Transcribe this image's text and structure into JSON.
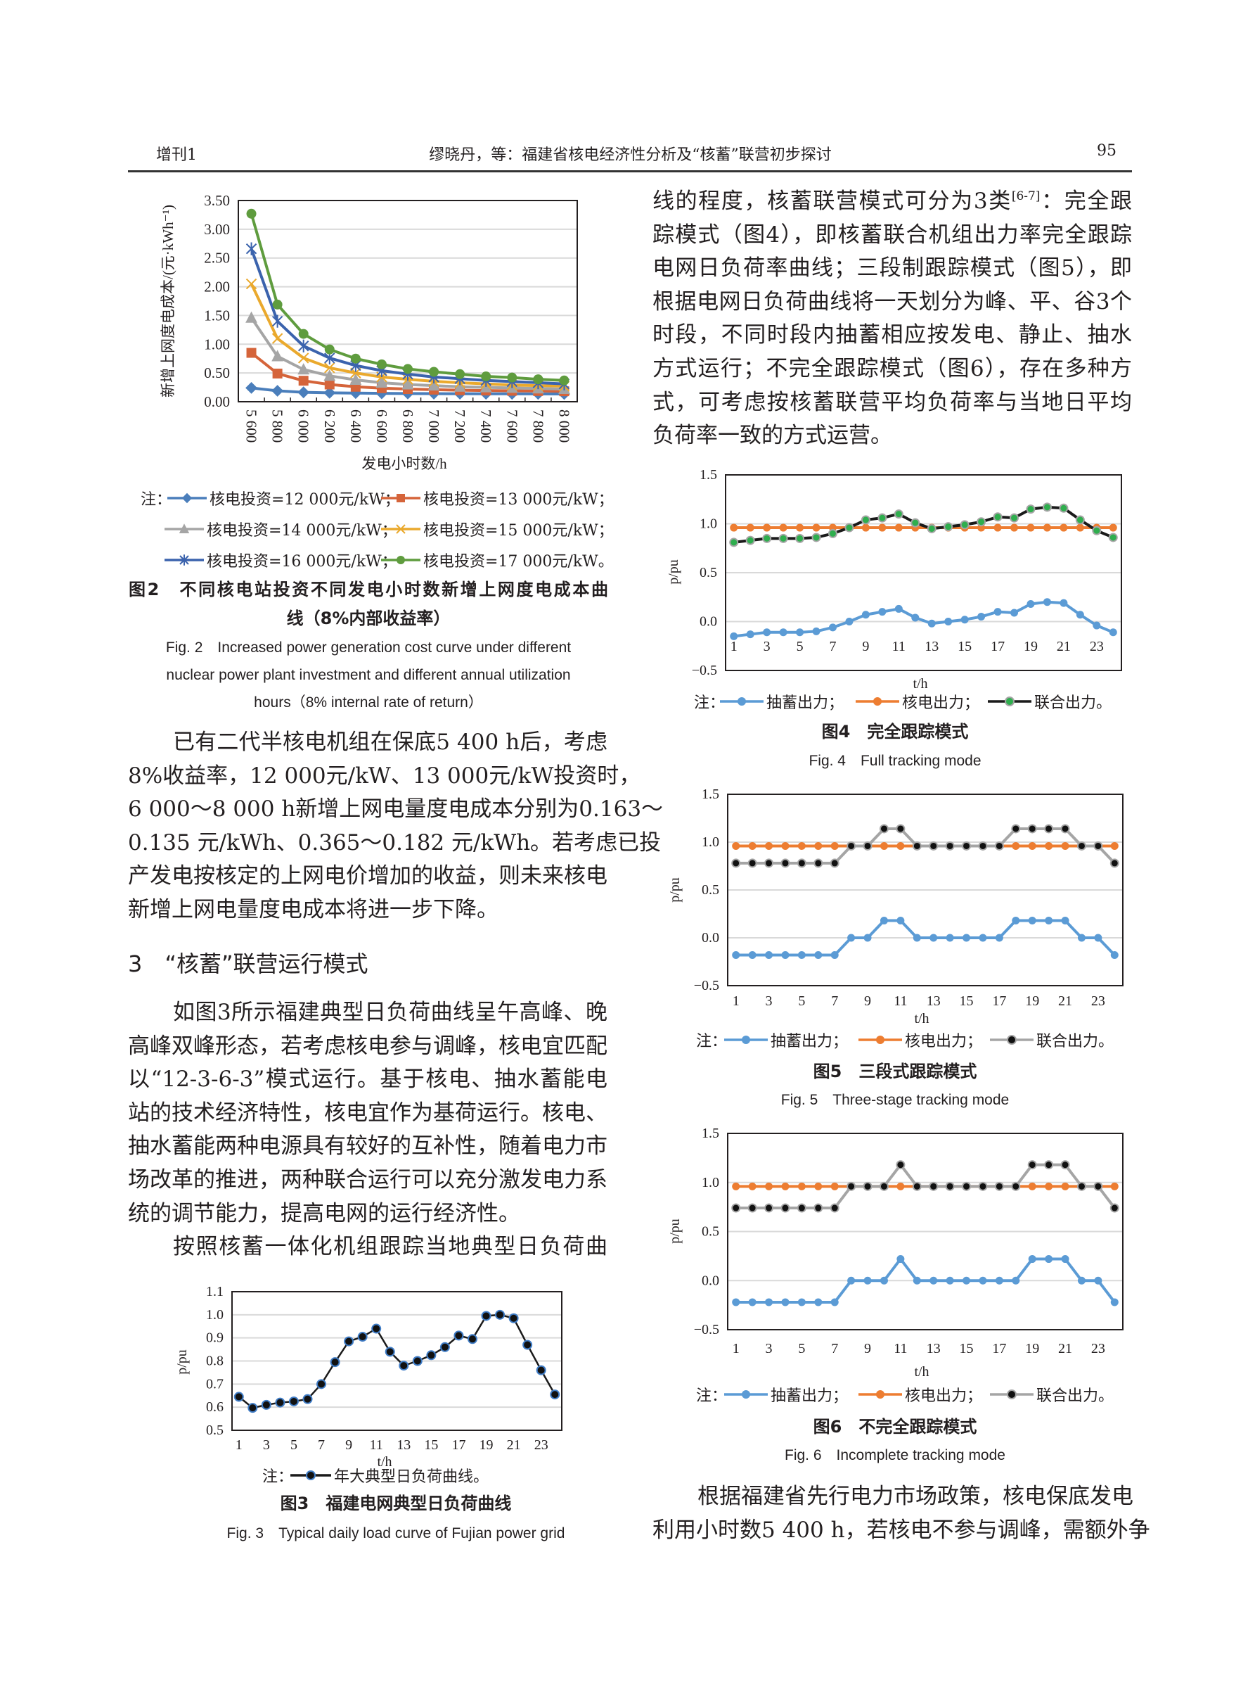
{
  "header": {
    "issue": "增刊1",
    "title": "缪晓丹，等：福建省核电经济性分析及“核蓄”联营初步探讨",
    "page_number": "95"
  },
  "right_top": {
    "line1_a": "线的程度，核蓄联营模式可分为3类",
    "line1_sup": "[6-7]",
    "line1_b": "：完全跟",
    "lines": [
      "踪模式（图4），即核蓄联合机组出力率完全跟踪",
      "电网日负荷率曲线；三段制跟踪模式（图5），即",
      "根据电网日负荷曲线将一天划分为峰、平、谷3个",
      "时段，不同时段内抽蓄相应按发电、静止、抽水",
      "方式运行；不完全跟踪模式（图6），存在多种方",
      "式，可考虑按核蓄联营平均负荷率与当地日平均",
      "负荷率一致的方式运营。"
    ]
  },
  "left_para1": [
    "已有二代半核电机组在保底5 400 h后，考虑",
    "8%收益率，12 000元/kW、13 000元/kW投资时，",
    "6 000～8 000 h新增上网电量度电成本分别为0.163～",
    "0.135 元/kWh、0.365～0.182 元/kWh。若考虑已投",
    "产发电按核定的上网电价增加的收益，则未来核电",
    "新增上网电量度电成本将进一步下降。"
  ],
  "section_heading": "3　“核蓄”联营运行模式",
  "left_para2": [
    "如图3所示福建典型日负荷曲线呈午高峰、晚",
    "高峰双峰形态，若考虑核电参与调峰，核电宜匹配",
    "以“12-3-6-3”模式运行。基于核电、抽水蓄能电",
    "站的技术经济特性，核电宜作为基荷运行。核电、",
    "抽水蓄能两种电源具有较好的互补性，随着电力市",
    "场改革的推进，两种联合运行可以充分激发电力系",
    "统的调节能力，提高电网的运行经济性。"
  ],
  "left_para3": [
    "按照核蓄一体化机组跟踪当地典型日负荷曲"
  ],
  "right_bottom": [
    "根据福建省先行电力市场政策，核电保底发电",
    "利用小时数5 400 h，若核电不参与调峰，需额外争"
  ],
  "captions": {
    "fig2_cn": [
      "图2　不同核电站投资不同发电小时数新增上网度电成本曲",
      "线（8%内部收益率）"
    ],
    "fig2_en": [
      "Fig. 2　Increased power generation cost curve under different",
      "nuclear power plant investment and different annual utilization",
      "hours（8% internal rate of return）"
    ],
    "fig3_cn": "图3　福建电网典型日负荷曲线",
    "fig3_en": "Fig. 3　Typical daily load curve of Fujian power grid",
    "fig4_cn": "图4　完全跟踪模式",
    "fig4_en": "Fig. 4　Full tracking mode",
    "fig5_cn": "图5　三段式跟踪模式",
    "fig5_en": "Fig. 5　Three-stage tracking mode",
    "fig6_cn": "图6　不完全跟踪模式",
    "fig6_en": "Fig. 6　Incomplete tracking mode"
  },
  "legend_note": "注：",
  "chart_data": [
    {
      "type": "line",
      "xlabel": "发电小时数/h",
      "ylabel": "新增上网度电成本/(元·kWh⁻¹)",
      "x": [
        5600,
        5800,
        6000,
        6200,
        6400,
        6600,
        6800,
        7000,
        7200,
        7400,
        7600,
        7800,
        8000
      ],
      "xtick_labels": [
        "5 600",
        "5 800",
        "6 000",
        "6 200",
        "6 400",
        "6 600",
        "6 800",
        "7 000",
        "7 200",
        "7 400",
        "7 600",
        "7 800",
        "8 000"
      ],
      "ylim": [
        0,
        3.5
      ],
      "yticks": [
        0,
        0.5,
        1,
        1.5,
        2,
        2.5,
        3,
        3.5
      ],
      "ytick_labels": [
        "0.00",
        "0.50",
        "1.00",
        "1.50",
        "2.00",
        "2.50",
        "3.00",
        "3.50"
      ],
      "grid": true,
      "legend": "below",
      "series": [
        {
          "name": "核电投资=12 000元/kW；",
          "color": "#4a7ebb",
          "marker": "diamond",
          "values": [
            0.24,
            0.19,
            0.163,
            0.155,
            0.15,
            0.146,
            0.143,
            0.14,
            0.139,
            0.138,
            0.137,
            0.136,
            0.135
          ]
        },
        {
          "name": "核电投资=13 000元/kW；",
          "color": "#d5643a",
          "marker": "square",
          "values": [
            0.85,
            0.49,
            0.365,
            0.3,
            0.26,
            0.235,
            0.22,
            0.21,
            0.2,
            0.195,
            0.19,
            0.186,
            0.182
          ]
        },
        {
          "name": "核电投资=14 000元/kW；",
          "color": "#a5a5a5",
          "marker": "triangle",
          "values": [
            1.46,
            0.79,
            0.56,
            0.45,
            0.38,
            0.33,
            0.3,
            0.28,
            0.26,
            0.25,
            0.24,
            0.23,
            0.22
          ]
        },
        {
          "name": "核电投资=15 000元/kW；",
          "color": "#eaa92d",
          "marker": "x",
          "values": [
            2.05,
            1.1,
            0.76,
            0.59,
            0.5,
            0.43,
            0.39,
            0.355,
            0.33,
            0.31,
            0.29,
            0.28,
            0.27
          ]
        },
        {
          "name": "核电投资=16 000元/kW；",
          "color": "#3b63ad",
          "marker": "asterisk",
          "values": [
            2.66,
            1.4,
            0.97,
            0.76,
            0.63,
            0.54,
            0.48,
            0.43,
            0.4,
            0.37,
            0.35,
            0.33,
            0.31
          ]
        },
        {
          "name": "核电投资=17 000元/kW。",
          "color": "#5f9c3e",
          "marker": "circle",
          "values": [
            3.27,
            1.69,
            1.18,
            0.91,
            0.75,
            0.65,
            0.57,
            0.52,
            0.48,
            0.44,
            0.42,
            0.39,
            0.37
          ]
        }
      ]
    },
    {
      "type": "line",
      "xlabel": "t/h",
      "ylabel": "p/pu",
      "x": [
        1,
        2,
        3,
        4,
        5,
        6,
        7,
        8,
        9,
        10,
        11,
        12,
        13,
        14,
        15,
        16,
        17,
        18,
        19,
        20,
        21,
        22,
        23,
        24
      ],
      "xtick_labels": [
        "1",
        "3",
        "5",
        "7",
        "9",
        "11",
        "13",
        "15",
        "17",
        "19",
        "21",
        "23"
      ],
      "ylim": [
        0.5,
        1.1
      ],
      "yticks": [
        0.5,
        0.6,
        0.7,
        0.8,
        0.9,
        1.0,
        1.1
      ],
      "ytick_labels": [
        "0.5",
        "0.6",
        "0.7",
        "0.8",
        "0.9",
        "1.0",
        "1.1"
      ],
      "grid": true,
      "legend": "below",
      "series": [
        {
          "name": "年大典型日负荷曲线。",
          "color": "#1a1a1a",
          "marker": "circle",
          "marker_fill": "#111111",
          "marker_stroke": "#3f7cc6",
          "values": [
            0.645,
            0.597,
            0.61,
            0.62,
            0.625,
            0.635,
            0.7,
            0.795,
            0.885,
            0.905,
            0.94,
            0.84,
            0.78,
            0.8,
            0.825,
            0.86,
            0.91,
            0.895,
            0.995,
            1.0,
            0.985,
            0.87,
            0.76,
            0.655
          ]
        }
      ]
    },
    {
      "type": "line",
      "xlabel": "t/h",
      "ylabel": "p/pu",
      "x": [
        1,
        2,
        3,
        4,
        5,
        6,
        7,
        8,
        9,
        10,
        11,
        12,
        13,
        14,
        15,
        16,
        17,
        18,
        19,
        20,
        21,
        22,
        23,
        24
      ],
      "xtick_labels": [
        "1",
        "3",
        "5",
        "7",
        "9",
        "11",
        "13",
        "15",
        "17",
        "19",
        "21",
        "23"
      ],
      "ylim": [
        -0.5,
        1.5
      ],
      "yticks": [
        -0.5,
        0,
        0.5,
        1.0,
        1.5
      ],
      "ytick_labels": [
        "−0.5",
        "0.0",
        "0.5",
        "1.0",
        "1.5"
      ],
      "grid": true,
      "legend": "below",
      "series": [
        {
          "name": "抽蓄出力；",
          "color": "#5b9bd5",
          "marker": "circle",
          "values": [
            -0.15,
            -0.13,
            -0.11,
            -0.11,
            -0.11,
            -0.1,
            -0.06,
            0.0,
            0.07,
            0.1,
            0.13,
            0.04,
            -0.02,
            0.0,
            0.02,
            0.05,
            0.1,
            0.09,
            0.18,
            0.2,
            0.19,
            0.07,
            -0.04,
            -0.11
          ]
        },
        {
          "name": "核电出力；",
          "color": "#ed7d31",
          "marker": "circle",
          "values": [
            0.96,
            0.96,
            0.96,
            0.96,
            0.96,
            0.96,
            0.96,
            0.96,
            0.96,
            0.96,
            0.96,
            0.96,
            0.96,
            0.96,
            0.96,
            0.96,
            0.96,
            0.96,
            0.96,
            0.96,
            0.96,
            0.96,
            0.96,
            0.96
          ]
        },
        {
          "name": "联合出力。",
          "color": "#1a1a1a",
          "marker": "circle",
          "marker_fill": "#2fae4e",
          "marker_stroke": "#a5a5a5",
          "values": [
            0.81,
            0.83,
            0.85,
            0.85,
            0.85,
            0.86,
            0.9,
            0.96,
            1.04,
            1.06,
            1.1,
            1.01,
            0.95,
            0.97,
            0.99,
            1.02,
            1.07,
            1.06,
            1.15,
            1.17,
            1.16,
            1.04,
            0.93,
            0.86
          ]
        }
      ]
    },
    {
      "type": "line",
      "xlabel": "t/h",
      "ylabel": "p/pu",
      "x": [
        1,
        2,
        3,
        4,
        5,
        6,
        7,
        8,
        9,
        10,
        11,
        12,
        13,
        14,
        15,
        16,
        17,
        18,
        19,
        20,
        21,
        22,
        23,
        24
      ],
      "xtick_labels": [
        "1",
        "3",
        "5",
        "7",
        "9",
        "11",
        "13",
        "15",
        "17",
        "19",
        "21",
        "23"
      ],
      "ylim": [
        -0.5,
        1.5
      ],
      "yticks": [
        -0.5,
        0,
        0.5,
        1.0,
        1.5
      ],
      "ytick_labels": [
        "−0.5",
        "0.0",
        "0.5",
        "1.0",
        "1.5"
      ],
      "grid": true,
      "legend": "below",
      "series": [
        {
          "name": "抽蓄出力；",
          "color": "#5b9bd5",
          "marker": "circle",
          "values": [
            -0.18,
            -0.18,
            -0.18,
            -0.18,
            -0.18,
            -0.18,
            -0.18,
            0,
            0,
            0.18,
            0.18,
            0,
            0,
            0,
            0,
            0,
            0,
            0.18,
            0.18,
            0.18,
            0.18,
            0,
            0,
            -0.18
          ]
        },
        {
          "name": "核电出力；",
          "color": "#ed7d31",
          "marker": "circle",
          "values": [
            0.96,
            0.96,
            0.96,
            0.96,
            0.96,
            0.96,
            0.96,
            0.96,
            0.96,
            0.96,
            0.96,
            0.96,
            0.96,
            0.96,
            0.96,
            0.96,
            0.96,
            0.96,
            0.96,
            0.96,
            0.96,
            0.96,
            0.96,
            0.96
          ]
        },
        {
          "name": "联合出力。",
          "color": "#a5a5a5",
          "marker": "circle",
          "marker_fill": "#111111",
          "marker_stroke": "#a5a5a5",
          "values": [
            0.78,
            0.78,
            0.78,
            0.78,
            0.78,
            0.78,
            0.78,
            0.96,
            0.96,
            1.14,
            1.14,
            0.96,
            0.96,
            0.96,
            0.96,
            0.96,
            0.96,
            1.14,
            1.14,
            1.14,
            1.14,
            0.96,
            0.96,
            0.78
          ]
        }
      ]
    },
    {
      "type": "line",
      "xlabel": "t/h",
      "ylabel": "p/pu",
      "x": [
        1,
        2,
        3,
        4,
        5,
        6,
        7,
        8,
        9,
        10,
        11,
        12,
        13,
        14,
        15,
        16,
        17,
        18,
        19,
        20,
        21,
        22,
        23,
        24
      ],
      "xtick_labels": [
        "1",
        "3",
        "5",
        "7",
        "9",
        "11",
        "13",
        "15",
        "17",
        "19",
        "21",
        "23"
      ],
      "ylim": [
        -0.5,
        1.5
      ],
      "yticks": [
        -0.5,
        0,
        0.5,
        1.0,
        1.5
      ],
      "ytick_labels": [
        "−0.5",
        "0.0",
        "0.5",
        "1.0",
        "1.5"
      ],
      "grid": true,
      "legend": "below",
      "series": [
        {
          "name": "抽蓄出力；",
          "color": "#5b9bd5",
          "marker": "circle",
          "values": [
            -0.22,
            -0.22,
            -0.22,
            -0.22,
            -0.22,
            -0.22,
            -0.22,
            0,
            0,
            0,
            0.22,
            0,
            0,
            0,
            0,
            0,
            0,
            0,
            0.22,
            0.22,
            0.22,
            0,
            0,
            -0.22
          ]
        },
        {
          "name": "核电出力；",
          "color": "#ed7d31",
          "marker": "circle",
          "values": [
            0.96,
            0.96,
            0.96,
            0.96,
            0.96,
            0.96,
            0.96,
            0.96,
            0.96,
            0.96,
            0.96,
            0.96,
            0.96,
            0.96,
            0.96,
            0.96,
            0.96,
            0.96,
            0.96,
            0.96,
            0.96,
            0.96,
            0.96,
            0.96
          ]
        },
        {
          "name": "联合出力。",
          "color": "#a5a5a5",
          "marker": "circle",
          "marker_fill": "#111111",
          "marker_stroke": "#a5a5a5",
          "values": [
            0.74,
            0.74,
            0.74,
            0.74,
            0.74,
            0.74,
            0.74,
            0.96,
            0.96,
            0.96,
            1.18,
            0.96,
            0.96,
            0.96,
            0.96,
            0.96,
            0.96,
            0.96,
            1.18,
            1.18,
            1.18,
            0.96,
            0.96,
            0.74
          ]
        }
      ]
    }
  ]
}
